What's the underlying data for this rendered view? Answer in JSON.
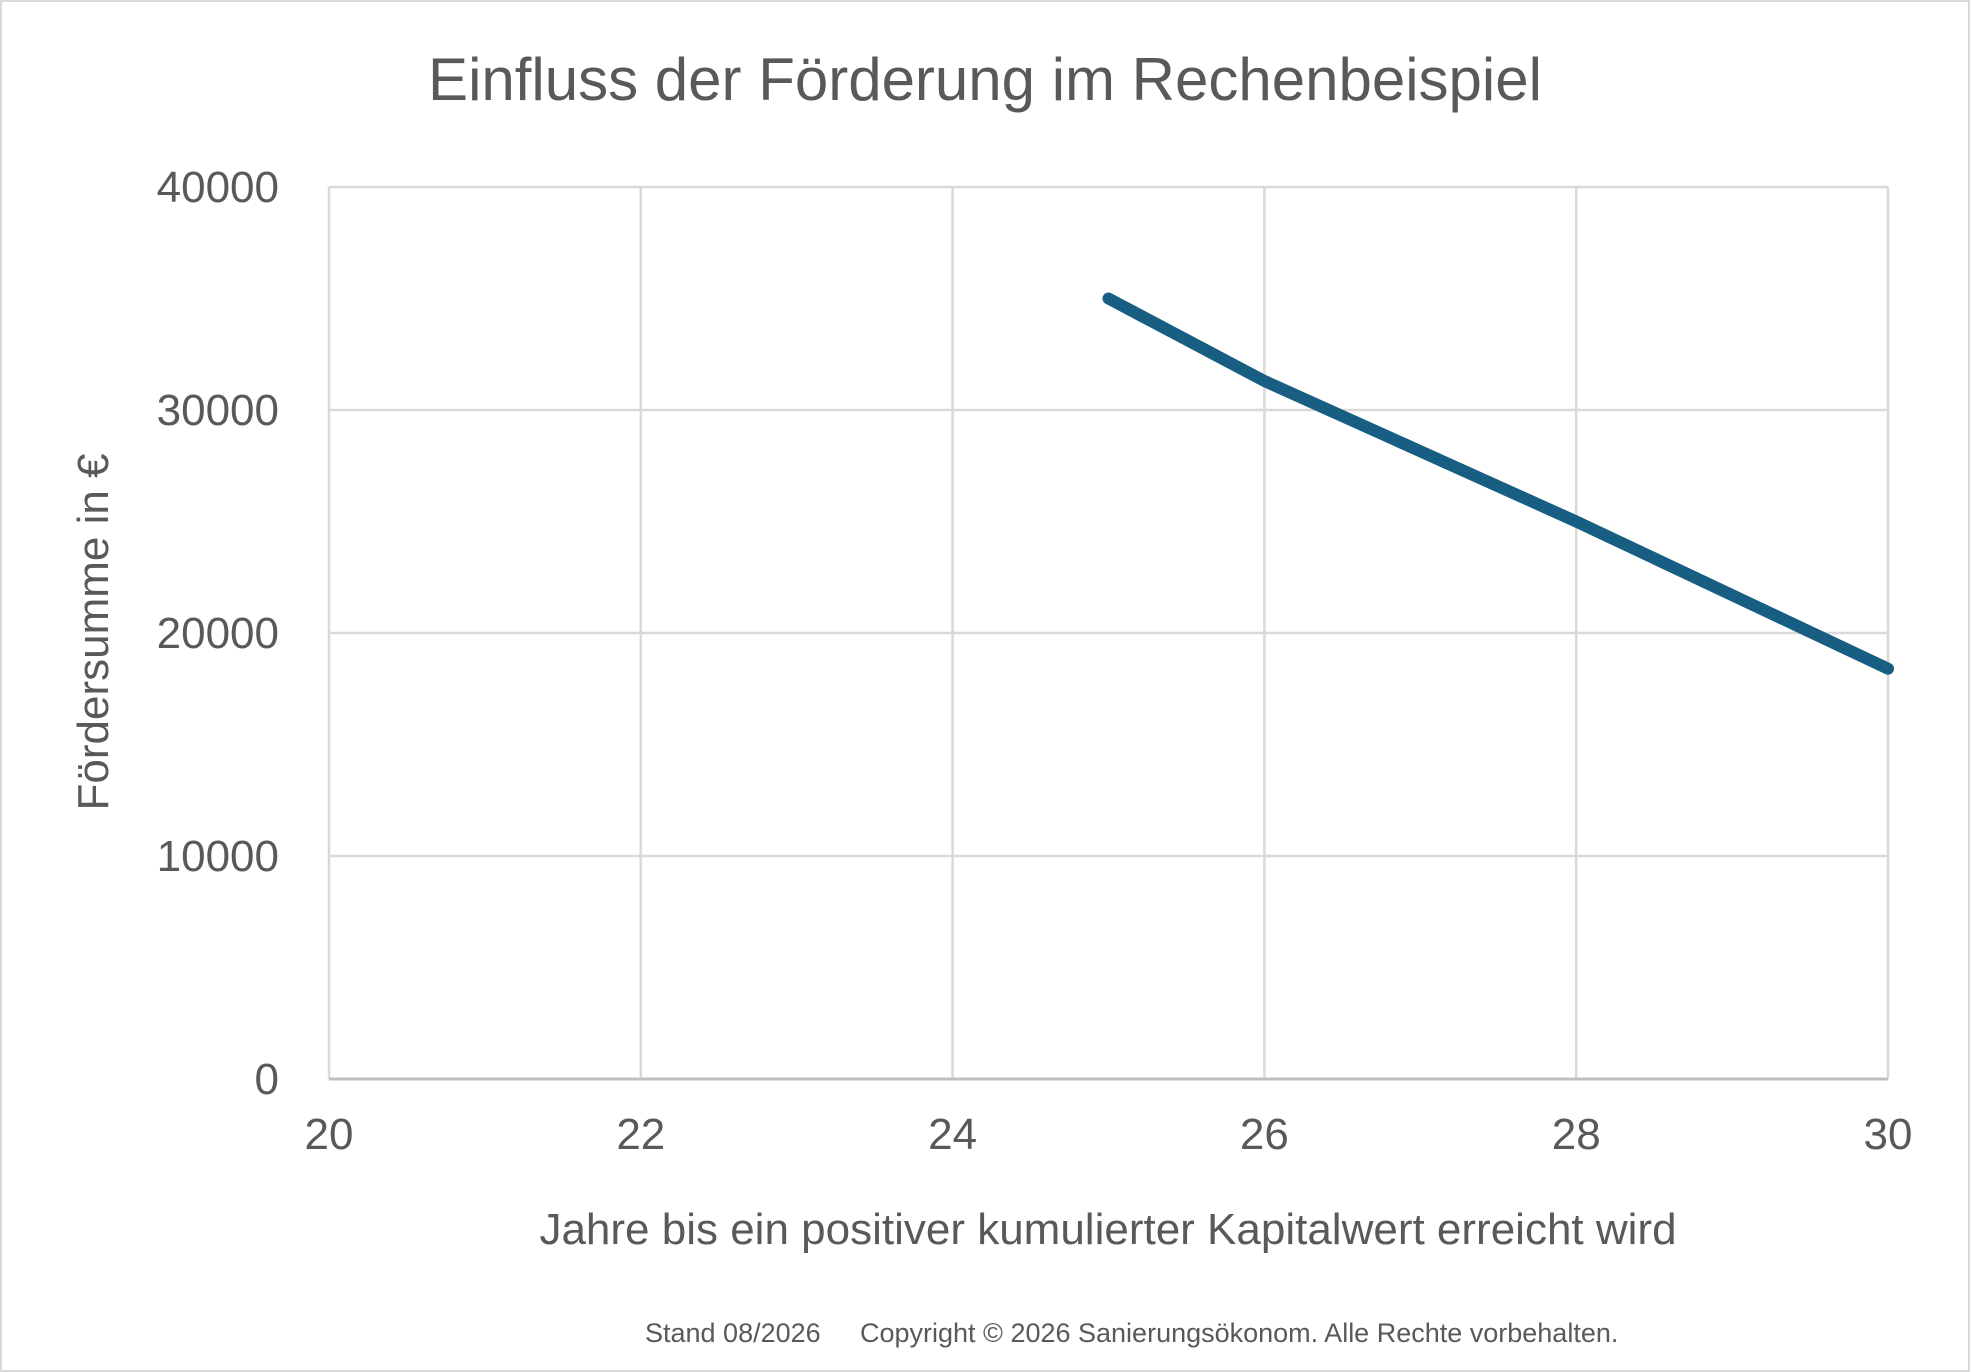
{
  "colors": {
    "series": "#175E82",
    "text": "#595959",
    "grid": "#D9D9D9"
  },
  "chart_data": {
    "type": "line",
    "title": "Einfluss der Förderung im Rechenbeispiel",
    "xlabel": "Jahre bis ein positiver kumulierter Kapitalwert erreicht wird",
    "ylabel": "Fördersumme in €",
    "xlim": [
      20,
      30
    ],
    "ylim": [
      0,
      40000
    ],
    "x_ticks": [
      "20",
      "22",
      "24",
      "26",
      "28",
      "30"
    ],
    "y_ticks": [
      "0",
      "10000",
      "20000",
      "30000",
      "40000"
    ],
    "grid": true,
    "legend": "none",
    "series": [
      {
        "x": [
          25,
          26,
          28,
          30
        ],
        "y": [
          35000,
          31300,
          25000,
          18400
        ]
      }
    ]
  },
  "footer": {
    "stand": "Stand 08/2026",
    "copyright": "Copyright © 2026 Sanierungsökonom. Alle Rechte vorbehalten."
  }
}
